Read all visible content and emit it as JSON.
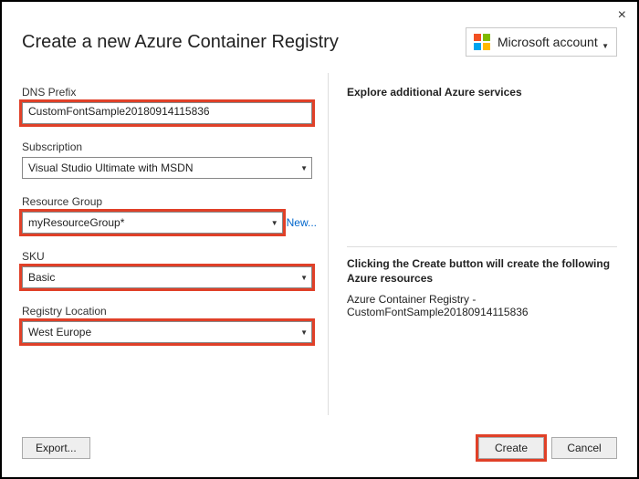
{
  "header": {
    "title": "Create a new Azure Container Registry",
    "account_label": "Microsoft account"
  },
  "fields": {
    "dns": {
      "label": "DNS Prefix",
      "value": "CustomFontSample20180914115836"
    },
    "subscription": {
      "label": "Subscription",
      "value": "Visual Studio Ultimate with MSDN"
    },
    "resource_group": {
      "label": "Resource Group",
      "value": "myResourceGroup*",
      "new_link": "New..."
    },
    "sku": {
      "label": "SKU",
      "value": "Basic"
    },
    "location": {
      "label": "Registry Location",
      "value": "West Europe"
    }
  },
  "right": {
    "heading": "Explore additional Azure services",
    "note_bold": "Clicking the Create button will create the following Azure resources",
    "note_line": "Azure Container Registry - CustomFontSample20180914115836"
  },
  "footer": {
    "export": "Export...",
    "create": "Create",
    "cancel": "Cancel"
  },
  "colors": {
    "highlight": "#e04028",
    "border_outer": "#000000",
    "divider": "#dddddd",
    "link": "#0066cc"
  }
}
